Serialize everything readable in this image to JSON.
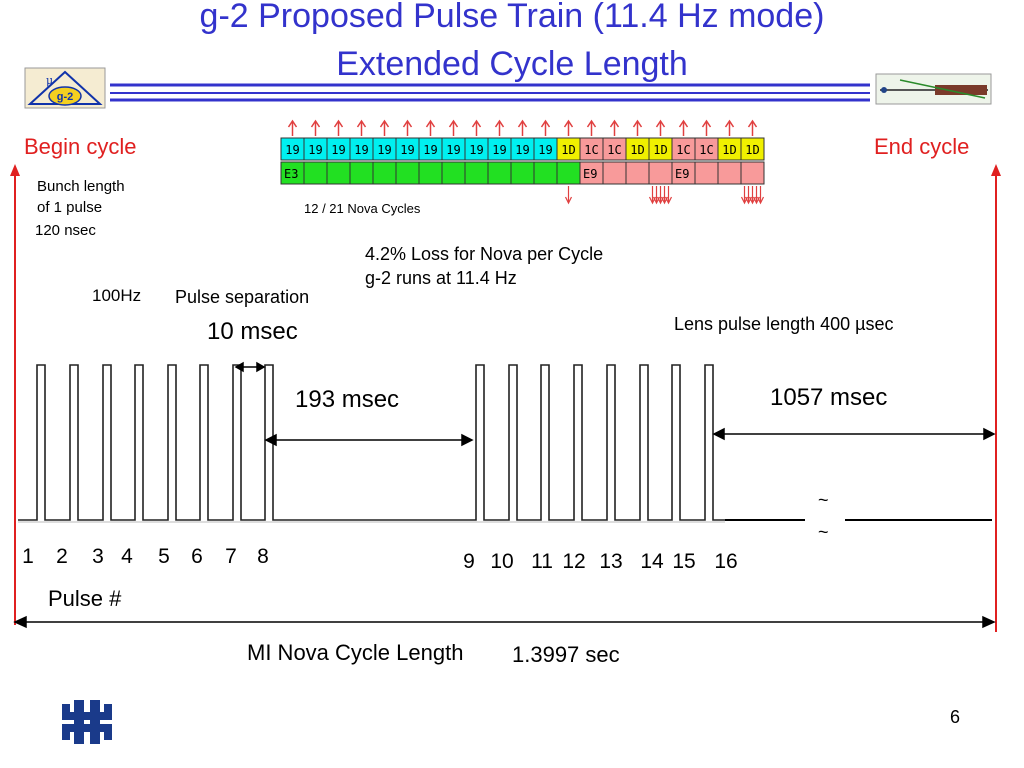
{
  "title": {
    "line1": "g-2 Proposed Pulse Train (11.4 Hz mode)",
    "line2": "Extended Cycle Length"
  },
  "colors": {
    "title": "#3333cc",
    "red_label": "#e02020",
    "cyan": "#00f0f0",
    "yellow": "#f0f000",
    "pink": "#f89a9a",
    "green": "#22e022",
    "arrow_red": "#e04040"
  },
  "slot_train": {
    "top_row": [
      "19",
      "19",
      "19",
      "19",
      "19",
      "19",
      "19",
      "19",
      "19",
      "19",
      "19",
      "19",
      "1D",
      "1C",
      "1C",
      "1D",
      "1D",
      "1C",
      "1C",
      "1D",
      "1D"
    ],
    "top_colors": [
      "cyan",
      "cyan",
      "cyan",
      "cyan",
      "cyan",
      "cyan",
      "cyan",
      "cyan",
      "cyan",
      "cyan",
      "cyan",
      "cyan",
      "yellow",
      "pink",
      "pink",
      "yellow",
      "yellow",
      "pink",
      "pink",
      "yellow",
      "yellow"
    ],
    "bottom_row": [
      "E3",
      "",
      "",
      "",
      "",
      "",
      "",
      "",
      "",
      "",
      "",
      "",
      "",
      "E9",
      "",
      "",
      "",
      "E9",
      "",
      "",
      ""
    ],
    "bottom_colors": [
      "green",
      "green",
      "green",
      "green",
      "green",
      "green",
      "green",
      "green",
      "green",
      "green",
      "green",
      "green",
      "green",
      "pink",
      "pink",
      "pink",
      "pink",
      "pink",
      "pink",
      "pink",
      "pink"
    ],
    "caption": "12 / 21 Nova Cycles"
  },
  "labels": {
    "begin_cycle": "Begin cycle",
    "end_cycle": "End cycle",
    "bunch_length_1": "Bunch length",
    "bunch_length_2": "of 1 pulse",
    "bunch_time": "120 nsec",
    "loss": "4.2% Loss for Nova per Cycle",
    "g2_rate": "g-2 runs at 11.4 Hz",
    "rate_100hz": "100Hz",
    "pulse_separation": "Pulse separation",
    "sep_time": "10 msec",
    "lens_pulse": "Lens pulse length  400 µsec",
    "gap_193": "193 msec",
    "gap_1057": "1057 msec",
    "tilde": "~",
    "pulse_hash": "Pulse #",
    "mi_cycle": "MI Nova Cycle Length",
    "mi_time": "1.3997 sec",
    "page_number": "6"
  },
  "pulse_numbers": [
    "1",
    "2",
    "3",
    "4",
    "5",
    "6",
    "7",
    "8",
    "9",
    "10",
    "11",
    "12",
    "13",
    "14",
    "15",
    "16"
  ]
}
